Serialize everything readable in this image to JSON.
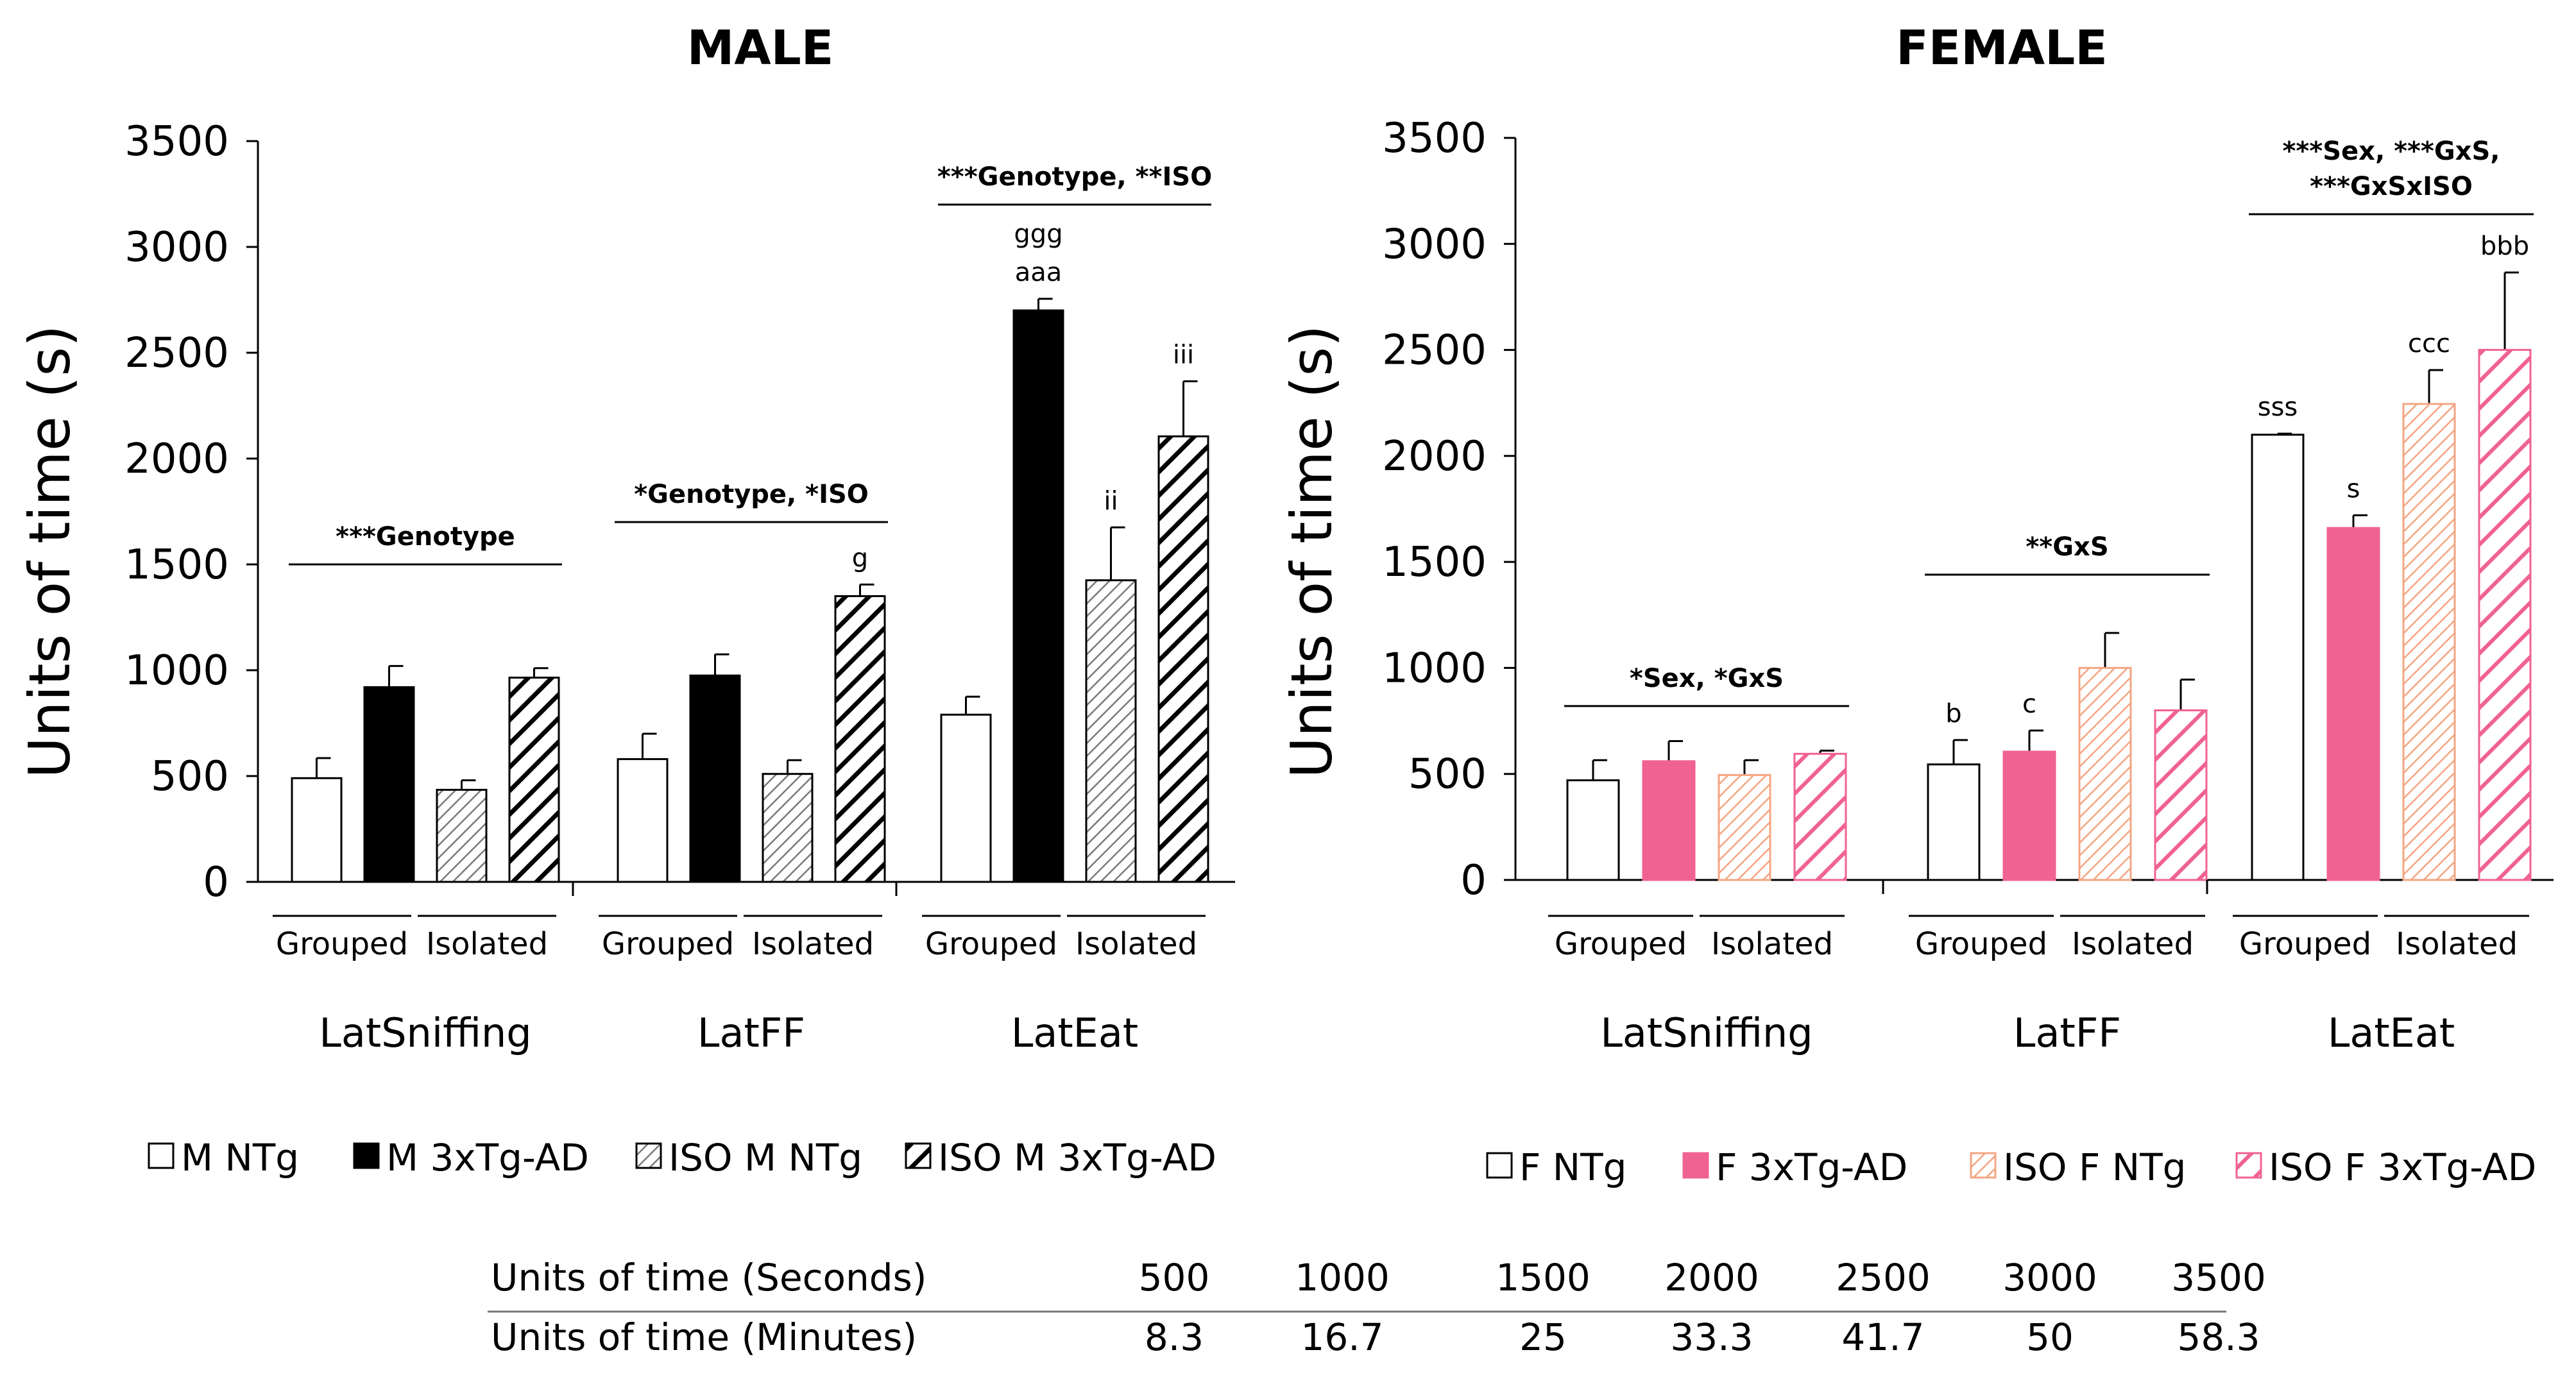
{
  "chart_data": [
    {
      "type": "bar",
      "title": "MALE",
      "ylabel": "Units of time (s)",
      "ylim": [
        0,
        3500
      ],
      "yticks": [
        0,
        500,
        1000,
        1500,
        2000,
        2500,
        3000,
        3500
      ],
      "housing_labels": [
        "Grouped",
        "Isolated"
      ],
      "categories": [
        "LatSniffing",
        "LatFF",
        "LatEat"
      ],
      "series": [
        {
          "name": "M  NTg",
          "fill": "white",
          "values": [
            490,
            580,
            790
          ],
          "errors": [
            95,
            120,
            85
          ]
        },
        {
          "name": "M 3xTg-AD",
          "fill": "black",
          "values": [
            920,
            975,
            2700
          ],
          "errors": [
            100,
            100,
            55
          ]
        },
        {
          "name": "ISO M NTg",
          "fill": "hatch-gray",
          "values": [
            435,
            510,
            1425
          ],
          "errors": [
            45,
            65,
            250
          ]
        },
        {
          "name": "ISO M 3xTg-AD",
          "fill": "hatch-black",
          "values": [
            965,
            1350,
            2105
          ],
          "errors": [
            45,
            55,
            260
          ]
        }
      ],
      "stats": [
        {
          "category": "LatSniffing",
          "text": "***Genotype"
        },
        {
          "category": "LatFF",
          "text": "*Genotype, *ISO"
        },
        {
          "category": "LatEat",
          "text": "***Genotype, **ISO"
        }
      ],
      "bar_letters": [
        {
          "category": "LatFF",
          "series": 3,
          "lines": [
            "g"
          ]
        },
        {
          "category": "LatEat",
          "series": 1,
          "lines": [
            "ggg",
            "aaa"
          ]
        },
        {
          "category": "LatEat",
          "series": 2,
          "lines": [
            "ii"
          ]
        },
        {
          "category": "LatEat",
          "series": 3,
          "lines": [
            "iii"
          ]
        }
      ]
    },
    {
      "type": "bar",
      "title": "FEMALE",
      "ylabel": "Units of time (s)",
      "ylim": [
        0,
        3500
      ],
      "yticks": [
        0,
        500,
        1000,
        1500,
        2000,
        2500,
        3000,
        3500
      ],
      "housing_labels": [
        "Grouped",
        "Isolated"
      ],
      "categories": [
        "LatSniffing",
        "LatFF",
        "LatEat"
      ],
      "series": [
        {
          "name": "F NTg",
          "fill": "white",
          "values": [
            470,
            545,
            2100
          ],
          "errors": [
            95,
            115,
            5
          ]
        },
        {
          "name": "F 3xTg-AD",
          "fill": "pink",
          "values": [
            560,
            605,
            1660
          ],
          "errors": [
            95,
            100,
            60
          ]
        },
        {
          "name": "ISO F NTg",
          "fill": "hatch-salmon",
          "values": [
            495,
            1000,
            2245
          ],
          "errors": [
            70,
            165,
            160
          ]
        },
        {
          "name": "ISO F 3xTg-AD",
          "fill": "hatch-pink",
          "values": [
            595,
            800,
            2500
          ],
          "errors": [
            15,
            145,
            365
          ]
        }
      ],
      "stats": [
        {
          "category": "LatSniffing",
          "lines": [
            "*Sex, *GxS"
          ]
        },
        {
          "category": "LatFF",
          "lines": [
            "**GxS"
          ]
        },
        {
          "category": "LatEat",
          "lines": [
            "***Sex, ***GxS,",
            "***GxSxISO"
          ]
        }
      ],
      "bar_letters": [
        {
          "category": "LatFF",
          "series": 0,
          "lines": [
            "b"
          ]
        },
        {
          "category": "LatFF",
          "series": 1,
          "lines": [
            "c"
          ]
        },
        {
          "category": "LatEat",
          "series": 0,
          "lines": [
            "sss"
          ]
        },
        {
          "category": "LatEat",
          "series": 1,
          "lines": [
            "s"
          ]
        },
        {
          "category": "LatEat",
          "series": 2,
          "lines": [
            "ccc"
          ]
        },
        {
          "category": "LatEat",
          "series": 3,
          "lines": [
            "bbb"
          ]
        }
      ]
    },
    {
      "type": "table",
      "rows": [
        {
          "label": "Units of time (Seconds)",
          "values": [
            "500",
            "1000",
            "1500",
            "2000",
            "2500",
            "3000",
            "3500"
          ]
        },
        {
          "label": "Units of time (Minutes)",
          "values": [
            "8.3",
            "16.7",
            "25",
            "33.3",
            "41.7",
            "50",
            "58.3"
          ]
        }
      ]
    }
  ],
  "colors": {
    "black": "#000000",
    "pink": "#f06292",
    "salmon": "#f4a582",
    "gray": "#7a7a7a"
  }
}
